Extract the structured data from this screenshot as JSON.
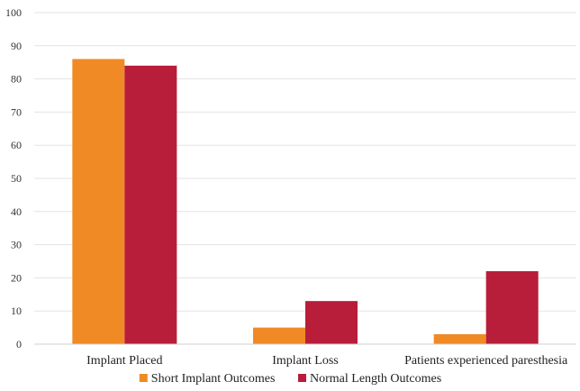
{
  "chart_data": {
    "type": "bar",
    "categories": [
      "Implant Placed",
      "Implant Loss",
      "Patients experienced paresthesia"
    ],
    "series": [
      {
        "name": "Short Implant Outcomes",
        "values": [
          86,
          5,
          3
        ],
        "color": "#f08a24"
      },
      {
        "name": "Normal Length Outcomes",
        "values": [
          84,
          13,
          22
        ],
        "color": "#b81d3a"
      }
    ],
    "ylim": [
      0,
      100
    ],
    "yticks": [
      0,
      10,
      20,
      30,
      40,
      50,
      60,
      70,
      80,
      90,
      100
    ],
    "grid": true,
    "legend_position": "bottom"
  }
}
